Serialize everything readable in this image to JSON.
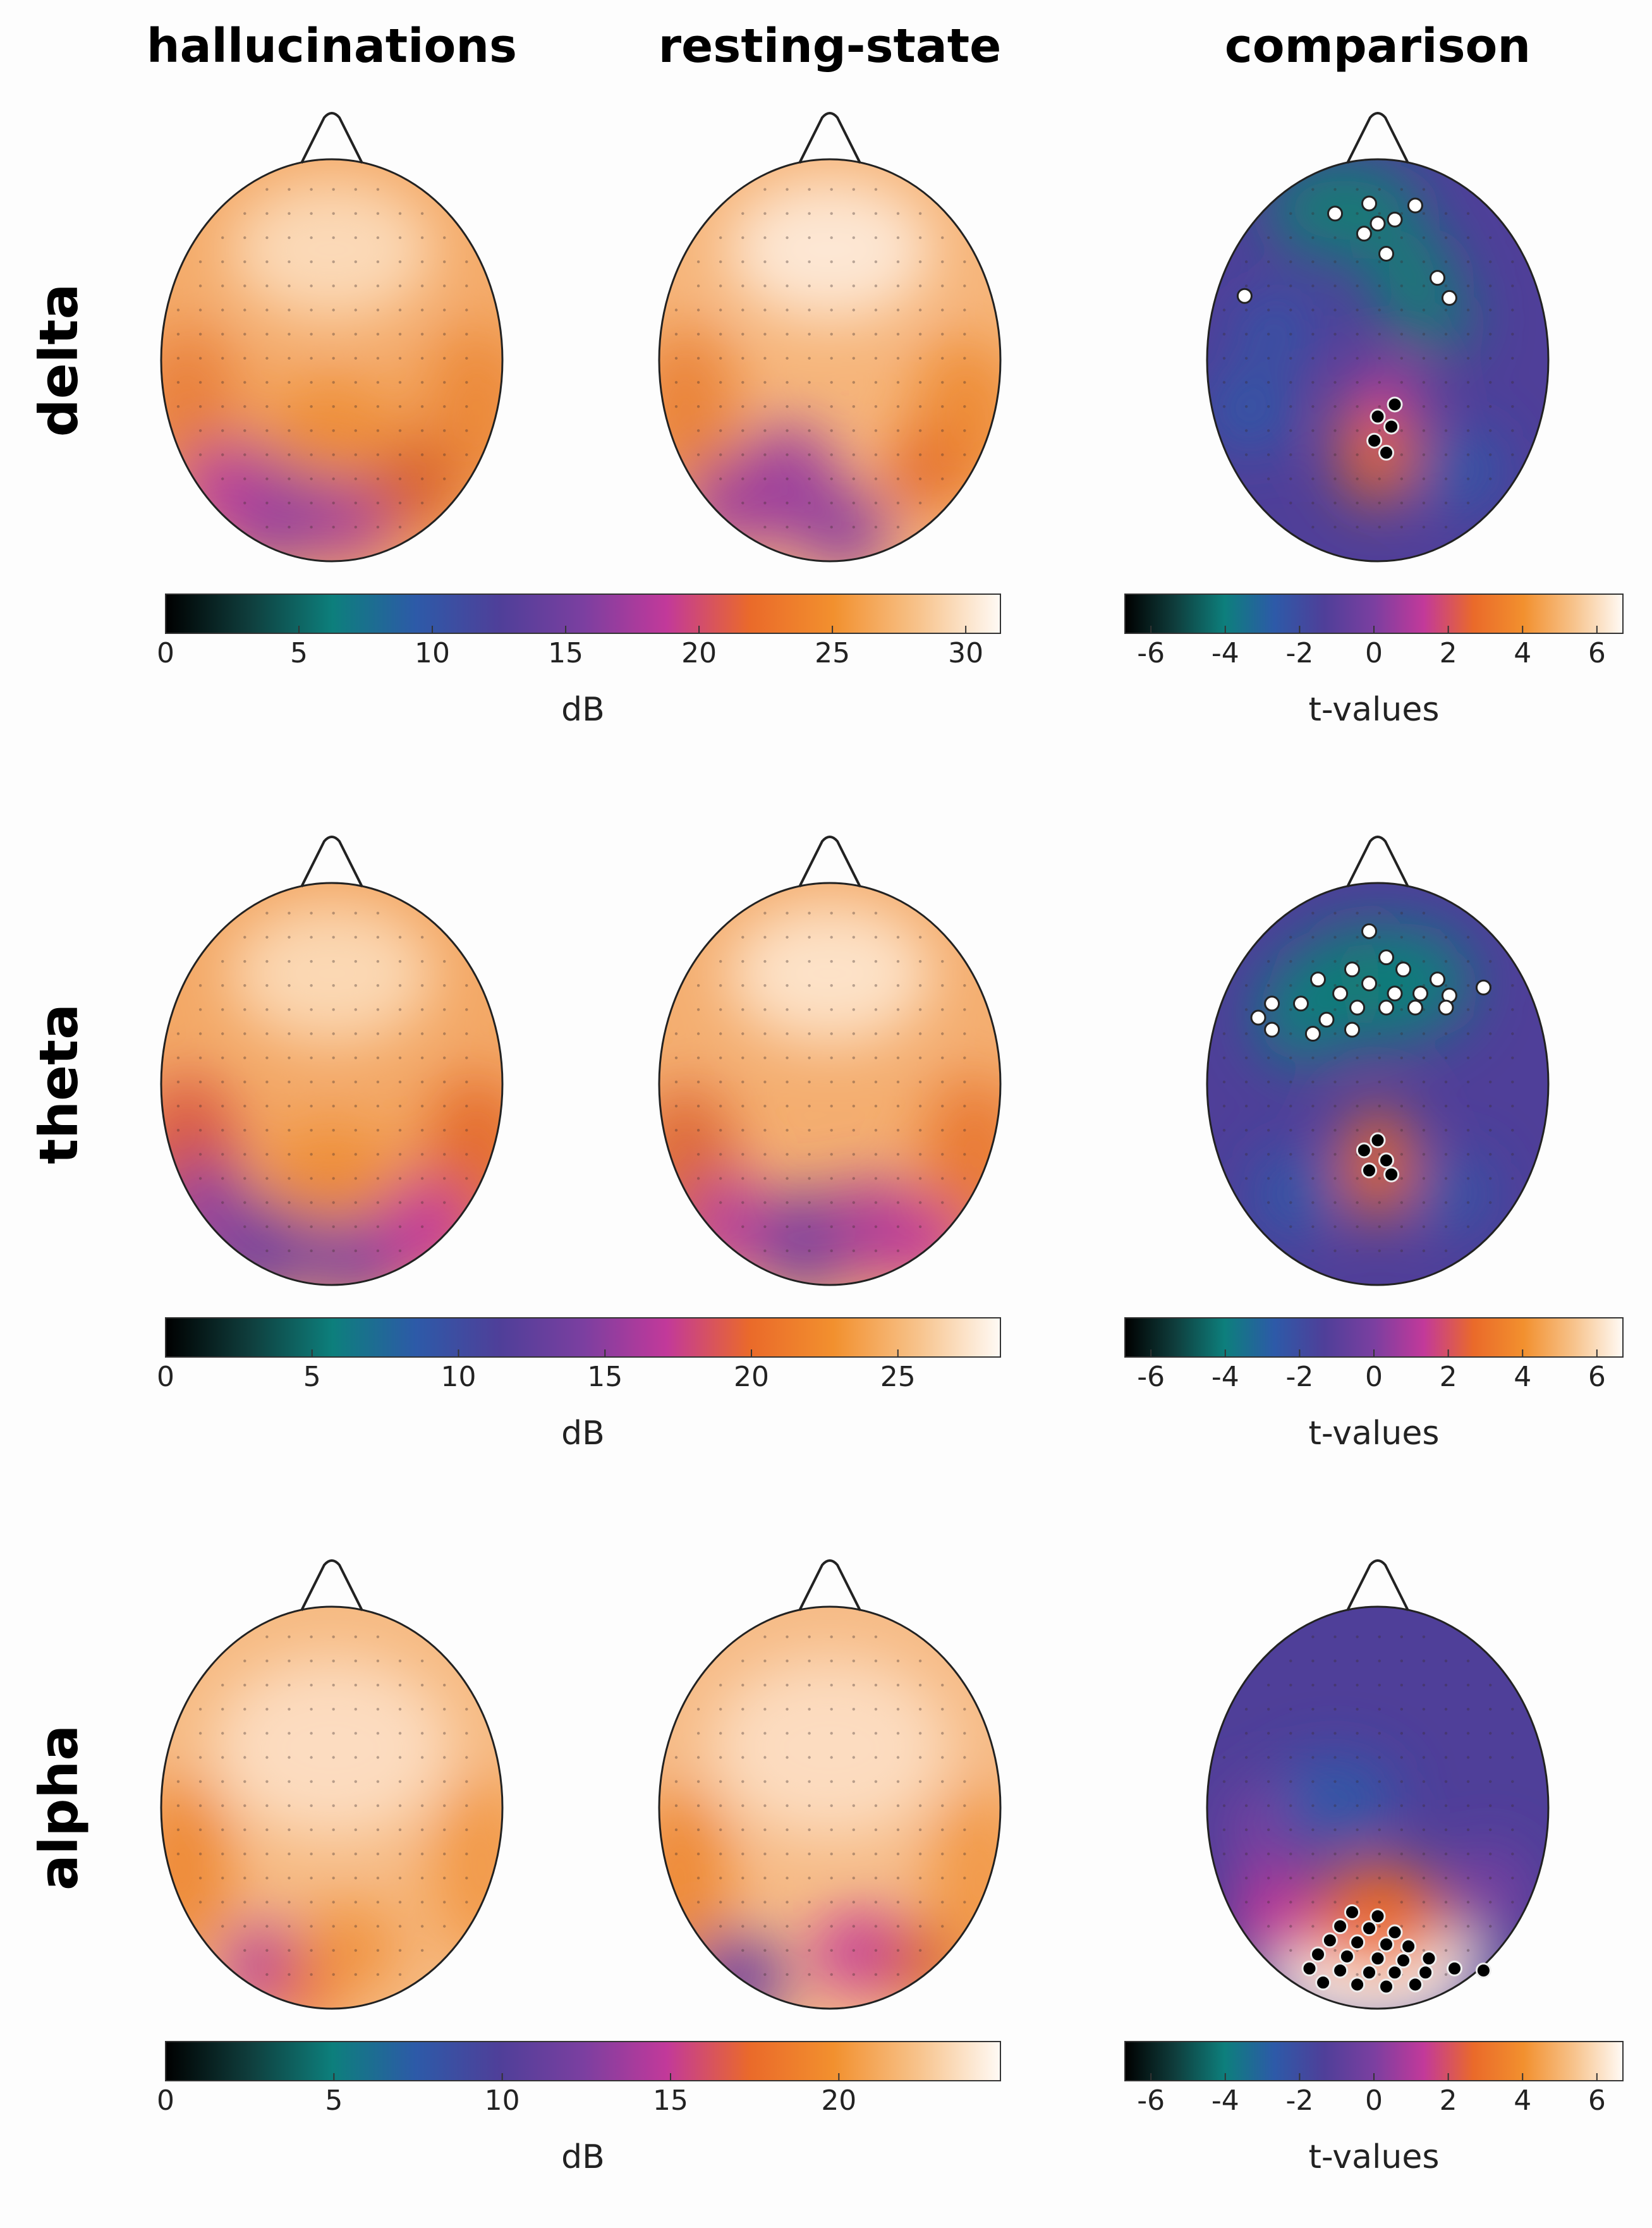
{
  "columns": [
    "hallucinations",
    "resting-state",
    "comparison"
  ],
  "colors": {
    "colormap": [
      "#000000",
      "#0f3d3c",
      "#0d7f7c",
      "#2d5aa8",
      "#4f3f99",
      "#7b3fa0",
      "#c2399a",
      "#ea6a2a",
      "#f2902e",
      "#f7c28a",
      "#fffaf5"
    ],
    "significant_negative": "#ffffff",
    "significant_positive": "#000000",
    "outline": "#222222"
  },
  "rows": [
    {
      "band": "delta",
      "db_colorbar": {
        "ticks": [
          "0",
          "5",
          "10",
          "15",
          "20",
          "25",
          "30"
        ],
        "max": 31.3,
        "unit": "dB"
      },
      "t_colorbar": {
        "ticks": [
          "-6",
          "-4",
          "-2",
          "0",
          "2",
          "4",
          "6"
        ],
        "min": -6.7,
        "max": 6.7,
        "unit": "t-values"
      },
      "comparison": {
        "negative_count": 10,
        "positive_count": 5,
        "pattern": "frontal negative cluster, central-parietal positive cluster"
      }
    },
    {
      "band": "theta",
      "db_colorbar": {
        "ticks": [
          "0",
          "5",
          "10",
          "15",
          "20",
          "25"
        ],
        "max": 28.5,
        "unit": "dB"
      },
      "t_colorbar": {
        "ticks": [
          "-6",
          "-4",
          "-2",
          "0",
          "2",
          "4",
          "6"
        ],
        "min": -6.7,
        "max": 6.7,
        "unit": "t-values"
      },
      "comparison": {
        "negative_count": 23,
        "positive_count": 5,
        "pattern": "broad frontal negative cluster, small central-parietal positive cluster"
      }
    },
    {
      "band": "alpha",
      "db_colorbar": {
        "ticks": [
          "0",
          "5",
          "10",
          "15",
          "20"
        ],
        "max": 24.8,
        "unit": "dB"
      },
      "t_colorbar": {
        "ticks": [
          "-6",
          "-4",
          "-2",
          "0",
          "2",
          "4",
          "6"
        ],
        "min": -6.7,
        "max": 6.7,
        "unit": "t-values"
      },
      "comparison": {
        "negative_count": 0,
        "positive_count": 25,
        "pattern": "large posterior positive cluster"
      }
    }
  ]
}
